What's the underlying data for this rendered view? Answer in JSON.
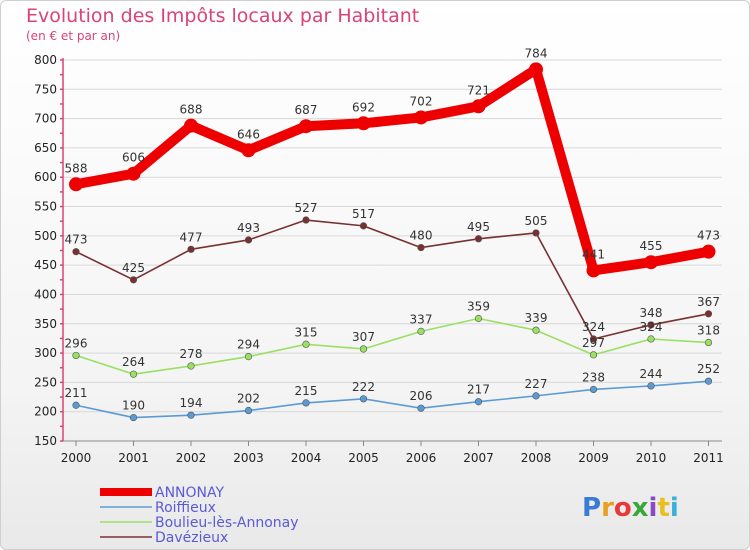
{
  "chart_data": {
    "type": "line",
    "title": "Evolution des Impôts locaux par Habitant",
    "subtitle": "(en € et par an)",
    "xlabel": "",
    "ylabel": "",
    "x": [
      "2000",
      "2001",
      "2002",
      "2003",
      "2004",
      "2005",
      "2006",
      "2007",
      "2008",
      "2009",
      "2010",
      "2011"
    ],
    "ylim": [
      150,
      800
    ],
    "yticks": [
      150,
      200,
      250,
      300,
      350,
      400,
      450,
      500,
      550,
      600,
      650,
      700,
      750,
      800
    ],
    "grid": true,
    "legend_position": "bottom-left",
    "series": [
      {
        "name": "ANNONAY",
        "color": "#ee0000",
        "values": [
          588,
          606,
          688,
          646,
          687,
          692,
          702,
          721,
          784,
          441,
          455,
          473
        ]
      },
      {
        "name": "Roiffieux",
        "color": "#5b9bd5",
        "values": [
          211,
          190,
          194,
          202,
          215,
          222,
          206,
          217,
          227,
          238,
          244,
          252
        ]
      },
      {
        "name": "Boulieu-lès-Annonay",
        "color": "#99e063",
        "values": [
          296,
          264,
          278,
          294,
          315,
          307,
          337,
          359,
          339,
          297,
          324,
          318
        ]
      },
      {
        "name": "Davézieux",
        "color": "#7a3030",
        "values": [
          473,
          425,
          477,
          493,
          527,
          517,
          480,
          495,
          505,
          324,
          348,
          367
        ]
      }
    ],
    "data_labels": [
      [
        "588",
        "606",
        "688",
        "646",
        "687",
        "692",
        "702",
        "721",
        "784",
        "441",
        "455",
        "473"
      ],
      [
        "211",
        "190",
        "194",
        "202",
        "215",
        "222",
        "206",
        "217",
        "227",
        "238",
        "244",
        "252"
      ],
      [
        "296",
        "264",
        "278",
        "294",
        "315",
        "307",
        "337",
        "359",
        "339",
        "297",
        "324",
        "318"
      ],
      [
        "473",
        "425",
        "477",
        "493",
        "527",
        "517",
        "480",
        "495",
        "505",
        "324",
        "348",
        "367"
      ]
    ]
  },
  "logo": {
    "letters": [
      "P",
      "r",
      "o",
      "x",
      "i",
      "t",
      "i"
    ],
    "colors": [
      "#3a7bd5",
      "#e8a020",
      "#e83838",
      "#38a838",
      "#8a4ac8",
      "#e8c020",
      "#3ab0d8"
    ]
  }
}
